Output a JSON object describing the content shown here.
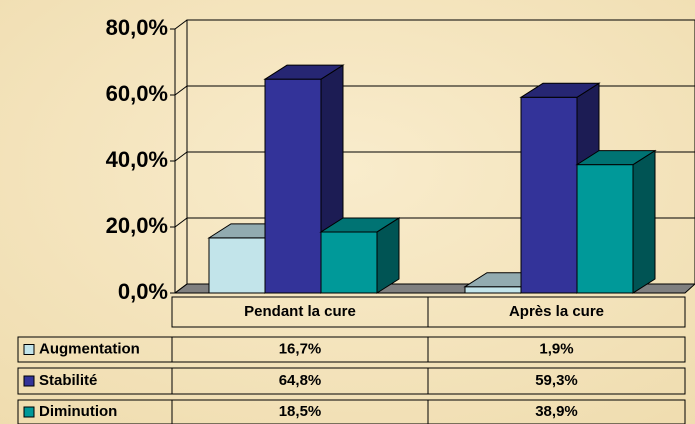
{
  "chart_data": {
    "type": "bar3d",
    "categories": [
      "Pendant la cure",
      "Après la cure"
    ],
    "series": [
      {
        "name": "Augmentation",
        "color": "#c2e4ea",
        "values": [
          16.7,
          1.9
        ],
        "value_labels": [
          "16,7%",
          "1,9%"
        ]
      },
      {
        "name": "Stabilité",
        "color": "#333399",
        "values": [
          64.8,
          59.3
        ],
        "value_labels": [
          "64,8%",
          "59,3%"
        ]
      },
      {
        "name": "Diminution",
        "color": "#009999",
        "values": [
          18.5,
          38.9
        ],
        "value_labels": [
          "18,5%",
          "38,9%"
        ]
      }
    ],
    "ylim": [
      0,
      80
    ],
    "yticks": [
      {
        "value": 0,
        "label": "0,0%"
      },
      {
        "value": 20,
        "label": "20,0%"
      },
      {
        "value": 40,
        "label": "40,0%"
      },
      {
        "value": 60,
        "label": "60,0%"
      },
      {
        "value": 80,
        "label": "80,0%"
      }
    ],
    "grid": true
  }
}
